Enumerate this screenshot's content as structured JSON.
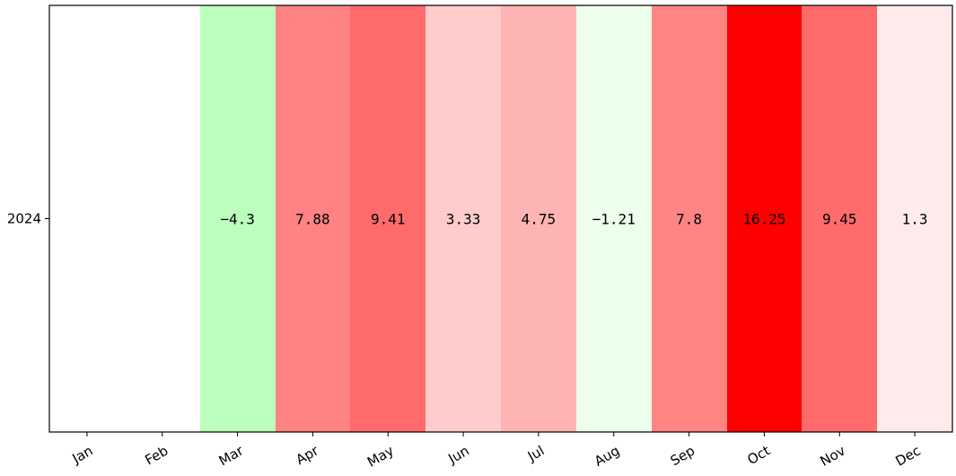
{
  "chart_data": {
    "type": "heatmap",
    "title": "",
    "xlabel": "",
    "ylabel": "",
    "rows": [
      "2024"
    ],
    "columns": [
      "Jan",
      "Feb",
      "Mar",
      "Apr",
      "May",
      "Jun",
      "Jul",
      "Aug",
      "Sep",
      "Oct",
      "Nov",
      "Dec"
    ],
    "values": [
      [
        null,
        null,
        -4.3,
        7.88,
        9.41,
        3.33,
        4.75,
        -1.21,
        7.8,
        16.25,
        9.45,
        1.3
      ]
    ],
    "labels": [
      [
        "",
        "",
        "−4.3",
        "7.88",
        "9.41",
        "3.33",
        "4.75",
        "−1.21",
        "7.8",
        "16.25",
        "9.45",
        "1.3"
      ]
    ],
    "colors": {
      "positive": "#ff0000",
      "negative": "#00ff00",
      "empty": "#ffffff",
      "text": "#000000"
    },
    "grid": false,
    "legend": "none"
  }
}
